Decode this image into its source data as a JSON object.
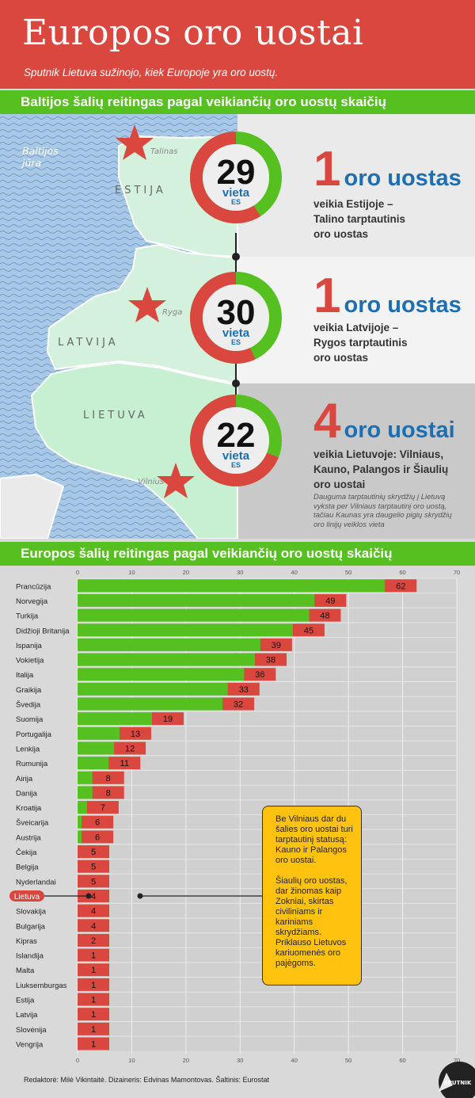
{
  "header": {
    "title": "Europos oro uostai",
    "subtitle": "Sputnik Lietuva sužinojo, kiek Europoje yra oro uostų."
  },
  "baltic": {
    "heading": "Baltijos šalių reitingas pagal veikiančių oro uostų skaičių",
    "sea_label": "Baltijos jūra",
    "countries": [
      {
        "country": "ESTIJA",
        "city": "Talinas",
        "rank": "29",
        "rank_word": "vieta",
        "rank_suffix": "ES",
        "count": "1",
        "unit": "oro uostas",
        "desc1": "veikia Estijoje –",
        "desc2": "Talino tarptautinis",
        "desc3": "oro uostas",
        "share": 0.41
      },
      {
        "country": "LATVIJA",
        "city": "Ryga",
        "rank": "30",
        "rank_word": "vieta",
        "rank_suffix": "ES",
        "count": "1",
        "unit": "oro uostas",
        "desc1": "veikia Latvijoje –",
        "desc2": "Rygos tarptautinis",
        "desc3": "oro uostas",
        "share": 0.43
      },
      {
        "country": "LIETUVA",
        "city": "Vilnius",
        "rank": "22",
        "rank_word": "vieta",
        "rank_suffix": "ES",
        "count": "4",
        "unit": "oro uostai",
        "desc1": "veikia Lietuvoje: Vilniaus,",
        "desc2": "Kauno, Palangos ir Šiaulių",
        "desc3": "oro uostai",
        "share": 0.31
      }
    ],
    "note": "Daugumа tarptautinių skrydžių į Lietuvą vyksta per Vilniaus tarptautinį oro uostą, tačiau Kaunas yra daugelio pigių skrydžių oro linijų veiklos vieta"
  },
  "europe_heading": "Europos šalių reitingas pagal veikiančių oro uostų skaičių",
  "chart_data": {
    "type": "bar",
    "orientation": "horizontal",
    "xlim": [
      0,
      70
    ],
    "xticks": [
      "0",
      "10",
      "20",
      "30",
      "40",
      "50",
      "60",
      "70"
    ],
    "highlight": "Lietuva",
    "categories": [
      "Prancūzija",
      "Norvegija",
      "Turkija",
      "Didžioji Britanija",
      "Ispanija",
      "Vokietija",
      "Italija",
      "Graikija",
      "Švedija",
      "Suomija",
      "Portugalija",
      "Lenkija",
      "Rumunija",
      "Airija",
      "Danija",
      "Kroatija",
      "Šveicarija",
      "Austrija",
      "Čekija",
      "Belgija",
      "Nyderlandai",
      "Lietuva",
      "Slovakija",
      "Bulgarija",
      "Kipras",
      "Islandija",
      "Malta",
      "Liuksemburgas",
      "Estija",
      "Latvija",
      "Slovėnija",
      "Vengrija"
    ],
    "values": [
      62,
      49,
      48,
      45,
      39,
      38,
      36,
      33,
      32,
      19,
      13,
      12,
      11,
      8,
      8,
      7,
      6,
      6,
      5,
      5,
      5,
      4,
      4,
      4,
      2,
      1,
      1,
      1,
      1,
      1,
      1,
      1
    ]
  },
  "callout": {
    "p1": "Be Vilniaus dar du šalies oro uostai turi tarptautinį statusą: Kauno ir Palangos oro uostai.",
    "p2": "Šiaulių oro uostas, dar žinomas kaip Zokniai, skirtas civiliniams ir kariniams skrydžiams. Priklauso Lietuvos kariuomenės oro pajėgoms."
  },
  "footer": "Redaktorė: Milė Vikintaitė. Dizaineris: Edvinas Mamontovas. Šaltinis: Eurostat",
  "logo_text": "SPUTNIK",
  "colors": {
    "green": "#55c01f",
    "red": "#d9473f",
    "blue": "#1c6fb3",
    "yellow": "#ffc20e"
  }
}
